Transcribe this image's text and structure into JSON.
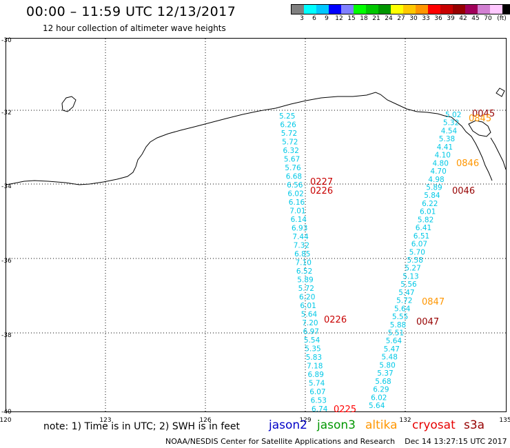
{
  "header": {
    "title": "00:00 – 11:59 UTC 12/13/2017",
    "subtitle": "12 hour collection of altimeter wave heights"
  },
  "color_scale": {
    "unit_label": "(ft)",
    "swatches": [
      "#808080",
      "#00ffff",
      "#00c8ff",
      "#0000ff",
      "#8080ff",
      "#00ff00",
      "#00c800",
      "#009600",
      "#ffff00",
      "#ffc800",
      "#ff9600",
      "#ff0000",
      "#c80000",
      "#960000",
      "#a0005a",
      "#d280d2",
      "#ffc8ff",
      "#000000"
    ],
    "labels": [
      "3",
      "6",
      "9",
      "12",
      "15",
      "18",
      "21",
      "24",
      "27",
      "30",
      "33",
      "36",
      "39",
      "42",
      "45",
      "70"
    ]
  },
  "axes": {
    "lat_labels": [
      "-30",
      "-32",
      "-34",
      "-36",
      "-38",
      "-40"
    ],
    "lon_labels": [
      "120",
      "123",
      "126",
      "129",
      "132",
      "135"
    ]
  },
  "track_cyan_left": [
    "5.25",
    "6.26",
    "5.72",
    "5.72",
    "6.32",
    "5.67",
    "5.76",
    "6.68",
    "6.56",
    "6.02",
    "6.16",
    "7.01",
    "6.14",
    "6.93",
    "7.44",
    "7.32",
    "6.85",
    "7.10",
    "6.52",
    "5.89",
    "5.72",
    "6.20",
    "6.01",
    "5.64",
    "7.20",
    "6.97",
    "5.54",
    "5.35",
    "5.83",
    "7.18",
    "6.89",
    "5.74",
    "6.07",
    "6.53",
    "6.74"
  ],
  "track_cyan_right": [
    "5.02",
    "5.32",
    "4.54",
    "5.38",
    "4.41",
    "4.10",
    "4.80",
    "4.70",
    "4.98",
    "5.89",
    "5.84",
    "6.22",
    "6.01",
    "5.82",
    "6.41",
    "6.51",
    "6.07",
    "5.70",
    "5.58",
    "5.27",
    "5.13",
    "5.56",
    "5.47",
    "5.72",
    "5.64",
    "5.55",
    "5.88",
    "5.51",
    "5.64",
    "5.47",
    "5.48",
    "5.80",
    "5.37",
    "5.68",
    "6.29",
    "6.02",
    "5.64"
  ],
  "time_labels": [
    {
      "text": "0227",
      "color": "#c80000"
    },
    {
      "text": "0226",
      "color": "#c80000"
    },
    {
      "text": "0226",
      "color": "#c80000"
    },
    {
      "text": "0225",
      "color": "#ff0000"
    },
    {
      "text": "0045",
      "color": "#960000"
    },
    {
      "text": "0845",
      "color": "#ff9600"
    },
    {
      "text": "0846",
      "color": "#ff9600"
    },
    {
      "text": "0046",
      "color": "#960000"
    },
    {
      "text": "0847",
      "color": "#ff9600"
    },
    {
      "text": "0047",
      "color": "#960000"
    }
  ],
  "legend": {
    "note": "note: 1) Time is in UTC; 2) SWH is in feet",
    "satellites": [
      {
        "name": "jason2",
        "color": "#0000c8"
      },
      {
        "name": "jason3",
        "color": "#009600"
      },
      {
        "name": "altika",
        "color": "#ff9600"
      },
      {
        "name": "cryosat",
        "color": "#e60000"
      },
      {
        "name": "s3a",
        "color": "#960000"
      }
    ]
  },
  "footer": {
    "credit": "NOAA/NESDIS Center for Satellite Applications and Research",
    "timestamp": "Dec 14 13:27:15 UTC 2017"
  }
}
